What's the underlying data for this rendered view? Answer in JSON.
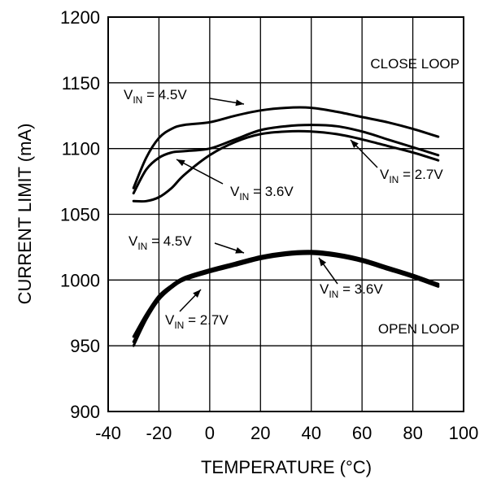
{
  "chart_data": {
    "type": "line",
    "title": "",
    "xlabel": "TEMPERATURE (°C)",
    "ylabel": "CURRENT LIMIT (mA)",
    "xlim": [
      -40,
      100
    ],
    "ylim": [
      900,
      1200
    ],
    "xticks": [
      -40,
      -20,
      0,
      20,
      40,
      60,
      80,
      100
    ],
    "yticks": [
      900,
      950,
      1000,
      1050,
      1100,
      1150,
      1200
    ],
    "xtick_labels": [
      "-40",
      "-20",
      "0",
      "20",
      "40",
      "60",
      "80",
      "100"
    ],
    "ytick_labels": [
      "900",
      "950",
      "1000",
      "1050",
      "1100",
      "1150",
      "1200"
    ],
    "grid": true,
    "line_color": "#000000",
    "region_labels": [
      "CLOSE LOOP",
      "OPEN LOOP"
    ],
    "annotations": [
      {
        "main": "V",
        "sub": "IN",
        "rest": " = 4.5V",
        "series_index": 0
      },
      {
        "main": "V",
        "sub": "IN",
        "rest": " = 3.6V",
        "series_index": 1
      },
      {
        "main": "V",
        "sub": "IN",
        "rest": " = 2.7V",
        "series_index": 2
      },
      {
        "main": "V",
        "sub": "IN",
        "rest": " = 4.5V",
        "series_index": 3
      },
      {
        "main": "V",
        "sub": "IN",
        "rest": " = 3.6V",
        "series_index": 4
      },
      {
        "main": "V",
        "sub": "IN",
        "rest": " = 2.7V",
        "series_index": 5
      }
    ],
    "series": [
      {
        "name": "",
        "x": [
          -30,
          -25,
          -20,
          -15,
          -10,
          0,
          10,
          20,
          30,
          40,
          50,
          60,
          70,
          80,
          90
        ],
        "y": [
          1070,
          1093,
          1108,
          1115,
          1118,
          1120,
          1125,
          1129,
          1131,
          1131,
          1128,
          1124,
          1120,
          1115,
          1109
        ],
        "width": 3
      },
      {
        "name": "",
        "x": [
          -30,
          -25,
          -20,
          -15,
          -10,
          0,
          10,
          20,
          30,
          40,
          50,
          60,
          70,
          80,
          90
        ],
        "y": [
          1060,
          1060,
          1063,
          1070,
          1080,
          1095,
          1105,
          1111,
          1113,
          1113,
          1111,
          1107,
          1102,
          1097,
          1091
        ],
        "width": 3
      },
      {
        "name": "",
        "x": [
          -30,
          -25,
          -20,
          -15,
          -10,
          0,
          10,
          20,
          30,
          40,
          50,
          60,
          70,
          80,
          90
        ],
        "y": [
          1066,
          1084,
          1093,
          1097,
          1098,
          1100,
          1107,
          1114,
          1117,
          1118,
          1117,
          1113,
          1107,
          1101,
          1095
        ],
        "width": 3
      },
      {
        "name": "",
        "x": [
          -30,
          -25,
          -20,
          -15,
          -10,
          0,
          10,
          20,
          30,
          40,
          50,
          60,
          70,
          80,
          90
        ],
        "y": [
          957,
          974,
          988,
          996,
          1002,
          1008,
          1013,
          1018,
          1021,
          1022,
          1020,
          1016,
          1010,
          1004,
          997
        ],
        "width": 3
      },
      {
        "name": "",
        "x": [
          -30,
          -25,
          -20,
          -15,
          -10,
          0,
          10,
          20,
          30,
          40,
          50,
          60,
          70,
          80,
          90
        ],
        "y": [
          953,
          972,
          987,
          995,
          1001,
          1007,
          1012,
          1017,
          1020,
          1021,
          1019,
          1015,
          1009,
          1003,
          996
        ],
        "width": 3
      },
      {
        "name": "",
        "x": [
          -30,
          -25,
          -20,
          -15,
          -10,
          0,
          10,
          20,
          30,
          40,
          50,
          60,
          70,
          80,
          90
        ],
        "y": [
          950,
          970,
          985,
          994,
          1000,
          1006,
          1011,
          1016,
          1019,
          1020,
          1018,
          1014,
          1008,
          1002,
          995
        ],
        "width": 3
      }
    ]
  }
}
